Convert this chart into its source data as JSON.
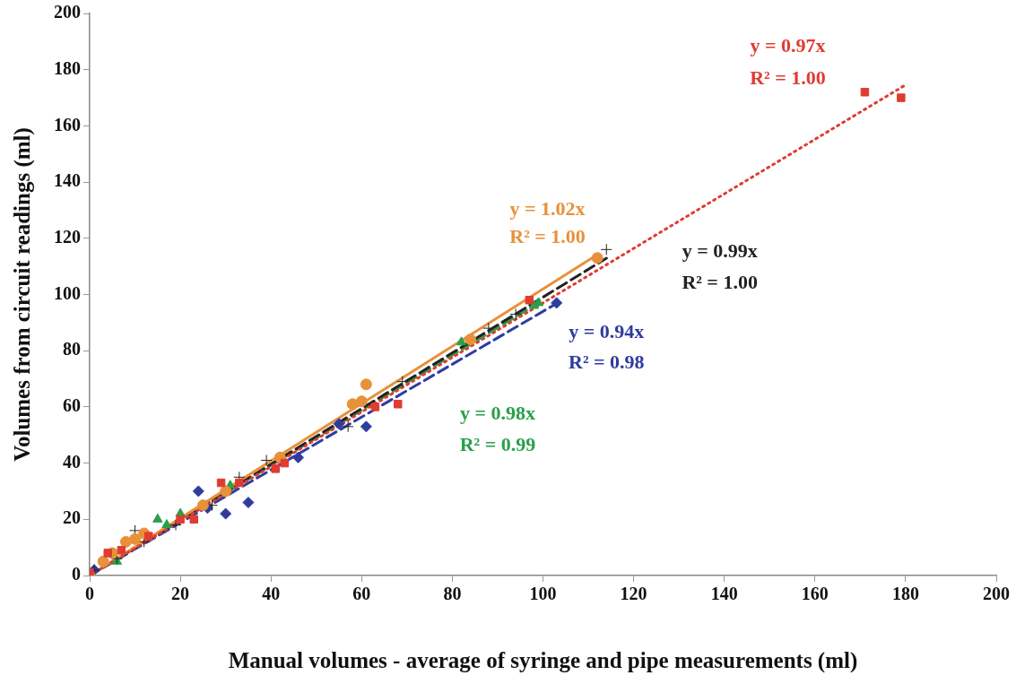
{
  "chart_data": {
    "type": "scatter",
    "xlabel": "Manual volumes - average of syringe and pipe measurements (ml)",
    "ylabel": "Volumes from circuit readings (ml)",
    "xlim": [
      0,
      200
    ],
    "ylim": [
      0,
      200
    ],
    "xticks": [
      0,
      20,
      40,
      60,
      80,
      100,
      120,
      140,
      160,
      180,
      200
    ],
    "yticks": [
      0,
      20,
      40,
      60,
      80,
      100,
      120,
      140,
      160,
      180,
      200
    ],
    "grid": false,
    "legend": false,
    "series": [
      {
        "type": "scatter",
        "marker": "square",
        "color": "#e03c31",
        "x": [
          0,
          4,
          7,
          13,
          20,
          23,
          29,
          33,
          41,
          43,
          63,
          68,
          97,
          171,
          179
        ],
        "values": [
          1,
          8,
          9,
          14,
          20,
          20,
          33,
          33,
          38,
          40,
          60,
          61,
          98,
          172,
          170
        ]
      },
      {
        "type": "scatter",
        "marker": "circle",
        "color": "#e8913a",
        "x": [
          0,
          3,
          5,
          8,
          10,
          12,
          25,
          30,
          42,
          58,
          60,
          61,
          84,
          112
        ],
        "values": [
          0,
          5,
          8,
          12,
          13,
          15,
          25,
          30,
          42,
          61,
          62,
          68,
          84,
          113
        ]
      },
      {
        "type": "scatter",
        "marker": "cross",
        "color": "#222222",
        "x": [
          1,
          6,
          10,
          12,
          19,
          27,
          33,
          39,
          57,
          69,
          88,
          94,
          114
        ],
        "values": [
          2,
          6,
          16,
          12,
          18,
          25,
          35,
          41,
          53,
          69,
          88,
          93,
          116
        ]
      },
      {
        "type": "scatter",
        "marker": "diamond",
        "color": "#2e3c9e",
        "x": [
          1,
          3,
          5,
          10,
          24,
          26,
          30,
          35,
          46,
          55,
          61,
          103
        ],
        "values": [
          2,
          null,
          null,
          null,
          30,
          24,
          22,
          26,
          42,
          54,
          53,
          97
        ]
      },
      {
        "type": "scatter",
        "marker": "triangle",
        "color": "#2aa04a",
        "x": [
          6,
          15,
          17,
          20,
          31,
          42,
          63,
          82,
          98,
          99
        ],
        "values": [
          5,
          20,
          18,
          22,
          32,
          null,
          null,
          83,
          96,
          97
        ]
      },
      {
        "type": "line",
        "line_style": "dotted",
        "color": "#e03c31",
        "x": [
          0,
          180
        ],
        "values": [
          0,
          174.6
        ]
      },
      {
        "type": "line",
        "line_style": "solid",
        "color": "#e8913a",
        "x": [
          0,
          112
        ],
        "values": [
          0,
          114.2
        ]
      },
      {
        "type": "line",
        "line_style": "dashed",
        "color": "#222222",
        "x": [
          0,
          114
        ],
        "values": [
          0,
          112.9
        ]
      },
      {
        "type": "line",
        "line_style": "dashed",
        "color": "#2e3c9e",
        "x": [
          0,
          103
        ],
        "values": [
          0,
          96.8
        ]
      },
      {
        "type": "line",
        "line_style": "dashed",
        "color": "#2aa04a",
        "x": [
          0,
          99
        ],
        "values": [
          0,
          97
        ]
      }
    ],
    "annotations": [
      "y = 0.97x",
      "R² = 1.00",
      "y = 1.02x",
      "R² = 1.00",
      "y = 0.99x",
      "R² = 1.00",
      "y = 0.94x",
      "R² = 0.98",
      "y = 0.98x",
      "R² = 0.99"
    ]
  }
}
